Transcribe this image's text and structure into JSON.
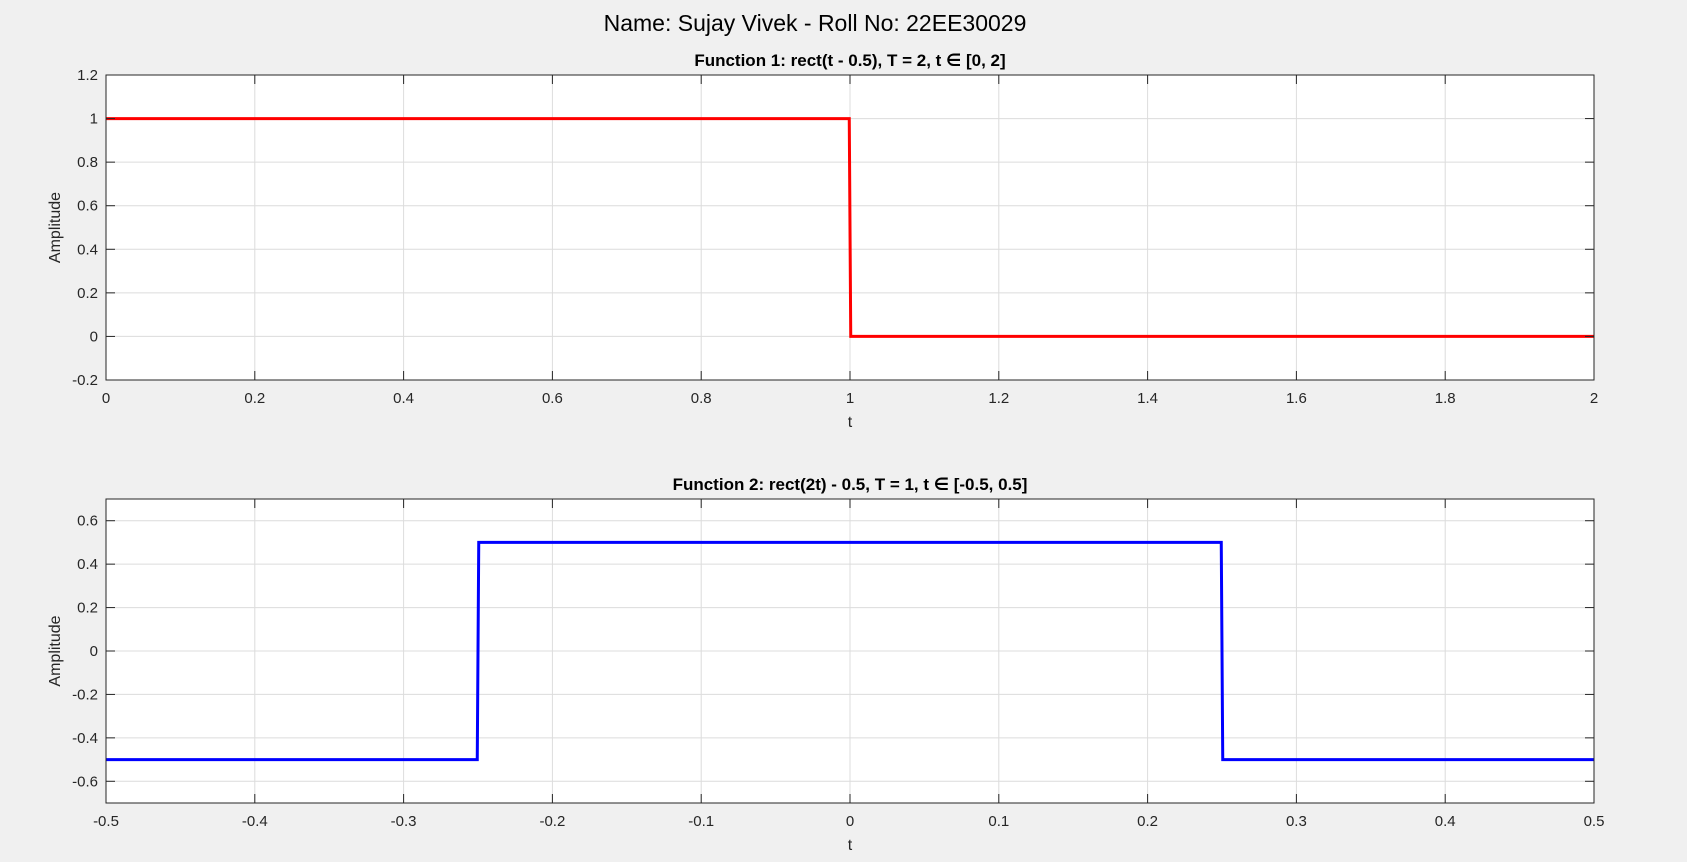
{
  "figure": {
    "suptitle": "Name: Sujay Vivek - Roll No: 22EE30029"
  },
  "chart_data": [
    {
      "type": "line",
      "title": "Function 1: rect(t - 0.5), T = 2, t ∈ [0, 2]",
      "xlabel": "t",
      "ylabel": "Amplitude",
      "xlim": [
        0,
        2
      ],
      "ylim": [
        -0.2,
        1.2
      ],
      "xticks": [
        0,
        0.2,
        0.4,
        0.6,
        0.8,
        1,
        1.2,
        1.4,
        1.6,
        1.8,
        2
      ],
      "yticks": [
        -0.2,
        0,
        0.2,
        0.4,
        0.6,
        0.8,
        1,
        1.2
      ],
      "xtick_labels": [
        "0",
        "0.2",
        "0.4",
        "0.6",
        "0.8",
        "1",
        "1.2",
        "1.4",
        "1.6",
        "1.8",
        "2"
      ],
      "ytick_labels": [
        "-0.2",
        "0",
        "0.2",
        "0.4",
        "0.6",
        "0.8",
        "1",
        "1.2"
      ],
      "grid": true,
      "series": [
        {
          "color": "#ff0000",
          "x": [
            0,
            0.999,
            1.001,
            2
          ],
          "y": [
            1,
            1,
            0,
            0
          ]
        }
      ]
    },
    {
      "type": "line",
      "title": "Function 2: rect(2t) - 0.5, T = 1, t ∈ [-0.5, 0.5]",
      "xlabel": "t",
      "ylabel": "Amplitude",
      "xlim": [
        -0.5,
        0.5
      ],
      "ylim": [
        -0.7,
        0.7
      ],
      "xticks": [
        -0.5,
        -0.4,
        -0.3,
        -0.2,
        -0.1,
        0,
        0.1,
        0.2,
        0.3,
        0.4,
        0.5
      ],
      "yticks": [
        -0.6,
        -0.4,
        -0.2,
        0,
        0.2,
        0.4,
        0.6
      ],
      "xtick_labels": [
        "-0.5",
        "-0.4",
        "-0.3",
        "-0.2",
        "-0.1",
        "0",
        "0.1",
        "0.2",
        "0.3",
        "0.4",
        "0.5"
      ],
      "ytick_labels": [
        "-0.6",
        "-0.4",
        "-0.2",
        "0",
        "0.2",
        "0.4",
        "0.6"
      ],
      "grid": true,
      "series": [
        {
          "color": "#0000ff",
          "x": [
            -0.5,
            -0.2505,
            -0.2495,
            0.2495,
            0.2505,
            0.5
          ],
          "y": [
            -0.5,
            -0.5,
            0.5,
            0.5,
            -0.5,
            -0.5
          ]
        }
      ]
    }
  ]
}
